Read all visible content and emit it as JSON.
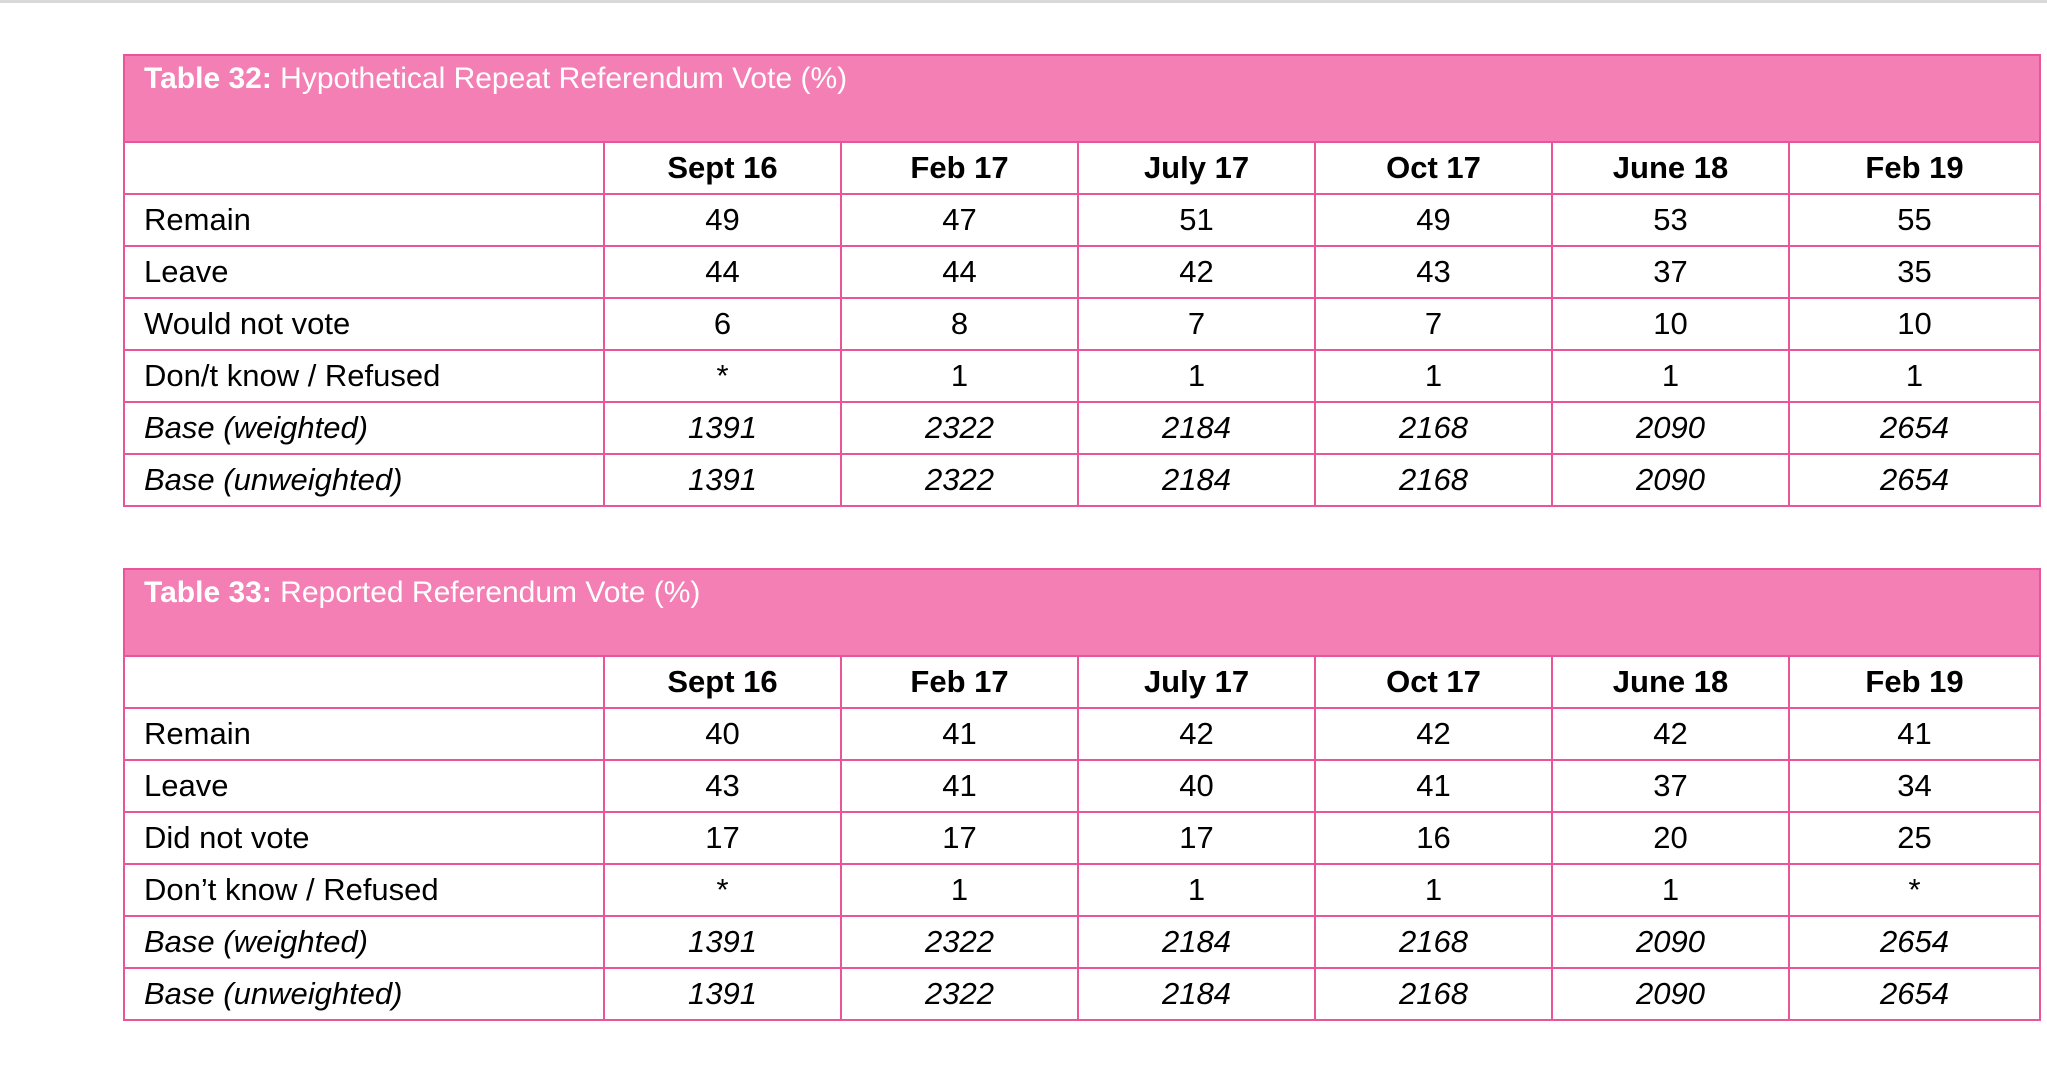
{
  "tables": [
    {
      "caption_label": "Table 32:",
      "caption_text": " Hypothetical Repeat Referendum Vote (%)",
      "columns": [
        "Sept 16",
        "Feb 17",
        "July 17",
        "Oct 17",
        "June 18",
        "Feb 19"
      ],
      "rows": [
        {
          "label": "Remain",
          "values": [
            "49",
            "47",
            "51",
            "49",
            "53",
            "55"
          ]
        },
        {
          "label": "Leave",
          "values": [
            "44",
            "44",
            "42",
            "43",
            "37",
            "35"
          ]
        },
        {
          "label": "Would not vote",
          "values": [
            "6",
            "8",
            "7",
            "7",
            "10",
            "10"
          ]
        },
        {
          "label": "Don/t know / Refused",
          "values": [
            "*",
            "1",
            "1",
            "1",
            "1",
            "1"
          ]
        },
        {
          "label": "Base (weighted)",
          "values": [
            "1391",
            "2322",
            "2184",
            "2168",
            "2090",
            "2654"
          ]
        },
        {
          "label": "Base (unweighted)",
          "values": [
            "1391",
            "2322",
            "2184",
            "2168",
            "2090",
            "2654"
          ]
        }
      ]
    },
    {
      "caption_label": "Table 33:",
      "caption_text": " Reported Referendum Vote (%)",
      "columns": [
        "Sept 16",
        "Feb 17",
        "July 17",
        "Oct 17",
        "June 18",
        "Feb 19"
      ],
      "rows": [
        {
          "label": "Remain",
          "values": [
            "40",
            "41",
            "42",
            "42",
            "42",
            "41"
          ]
        },
        {
          "label": "Leave",
          "values": [
            "43",
            "41",
            "40",
            "41",
            "37",
            "34"
          ]
        },
        {
          "label": "Did not vote",
          "values": [
            "17",
            "17",
            "17",
            "16",
            "20",
            "25"
          ]
        },
        {
          "label": "Don’t know / Refused",
          "values": [
            "*",
            "1",
            "1",
            "1",
            "1",
            "*"
          ]
        },
        {
          "label": "Base (weighted)",
          "values": [
            "1391",
            "2322",
            "2184",
            "2168",
            "2090",
            "2654"
          ]
        },
        {
          "label": "Base (unweighted)",
          "values": [
            "1391",
            "2322",
            "2184",
            "2168",
            "2090",
            "2654"
          ]
        }
      ]
    }
  ],
  "colors": {
    "caption_background": "#f47fb4",
    "border": "#e8559b",
    "caption_text": "#ffffff"
  }
}
